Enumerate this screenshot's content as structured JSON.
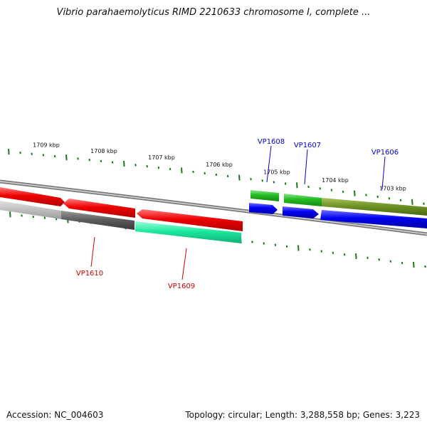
{
  "title": "Vibrio parahaemolyticus RIMD 2210633 chromosome I, complete ...",
  "footer": {
    "accession": "Accession: NC_004603",
    "summary": "Topology: circular; Length: 3,288,558 bp; Genes: 3,223"
  },
  "colors": {
    "forward_label": "#0000cc",
    "reverse_label": "#cc0000",
    "tick": "#1a7a1a"
  },
  "scale": {
    "labels": [
      "1709 kbp",
      "1708 kbp",
      "1707 kbp",
      "1706 kbp",
      "1705 kbp",
      "1704 kbp",
      "1703 kbp"
    ]
  },
  "genes": [
    {
      "name": "VP1608",
      "strand": "forward",
      "color": "#2bbf2b"
    },
    {
      "name": "VP1607",
      "strand": "forward",
      "color": "#2bbf2b"
    },
    {
      "name": "VP1606",
      "strand": "forward",
      "color": "#6b8e23"
    },
    {
      "name": "VP1610",
      "strand": "reverse",
      "color": "#e00000"
    },
    {
      "name": "VP1609",
      "strand": "reverse",
      "color": "#e00000"
    }
  ]
}
